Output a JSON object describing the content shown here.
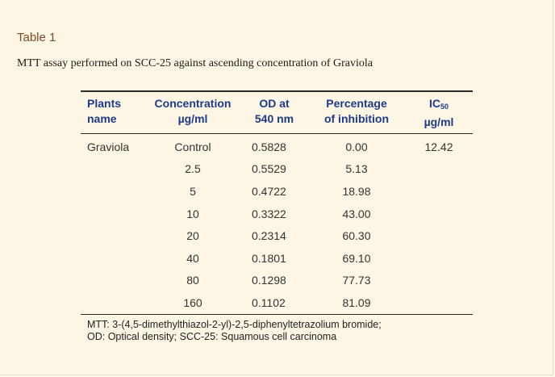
{
  "table_label": "Table 1",
  "caption": "MTT assay performed on SCC-25 against ascending concentration of Graviola",
  "headers": {
    "plant_line1": "Plants",
    "plant_line2": "name",
    "conc_line1": "Concentration",
    "conc_line2": "µg/ml",
    "od_line1": "OD at",
    "od_line2": "540 nm",
    "pct_line1": "Percentage",
    "pct_line2": "of inhibition",
    "ic_main": "IC",
    "ic_sub": "50",
    "ic_line2": "µg/ml"
  },
  "rows": [
    {
      "plant": "Graviola",
      "conc": "Control",
      "od": "0.5828",
      "pct": "0.00",
      "ic": "12.42"
    },
    {
      "plant": "",
      "conc": "2.5",
      "od": "0.5529",
      "pct": "5.13",
      "ic": ""
    },
    {
      "plant": "",
      "conc": "5",
      "od": "0.4722",
      "pct": "18.98",
      "ic": ""
    },
    {
      "plant": "",
      "conc": "10",
      "od": "0.3322",
      "pct": "43.00",
      "ic": ""
    },
    {
      "plant": "",
      "conc": "20",
      "od": "0.2314",
      "pct": "60.30",
      "ic": ""
    },
    {
      "plant": "",
      "conc": "40",
      "od": "0.1801",
      "pct": "69.10",
      "ic": ""
    },
    {
      "plant": "",
      "conc": "80",
      "od": "0.1298",
      "pct": "77.73",
      "ic": ""
    },
    {
      "plant": "",
      "conc": "160",
      "od": "0.1102",
      "pct": "81.09",
      "ic": ""
    }
  ],
  "footnote_line1": "MTT: 3-(4,5-dimethylthiazol-2-yl)-2,5-diphenyltetrazolium bromide;",
  "footnote_line2": "OD: Optical density; SCC-25: Squamous cell carcinoma",
  "colors": {
    "background": "#fdf6e4",
    "header_text": "#1f3a8a",
    "label_text": "#7a4a2a"
  }
}
